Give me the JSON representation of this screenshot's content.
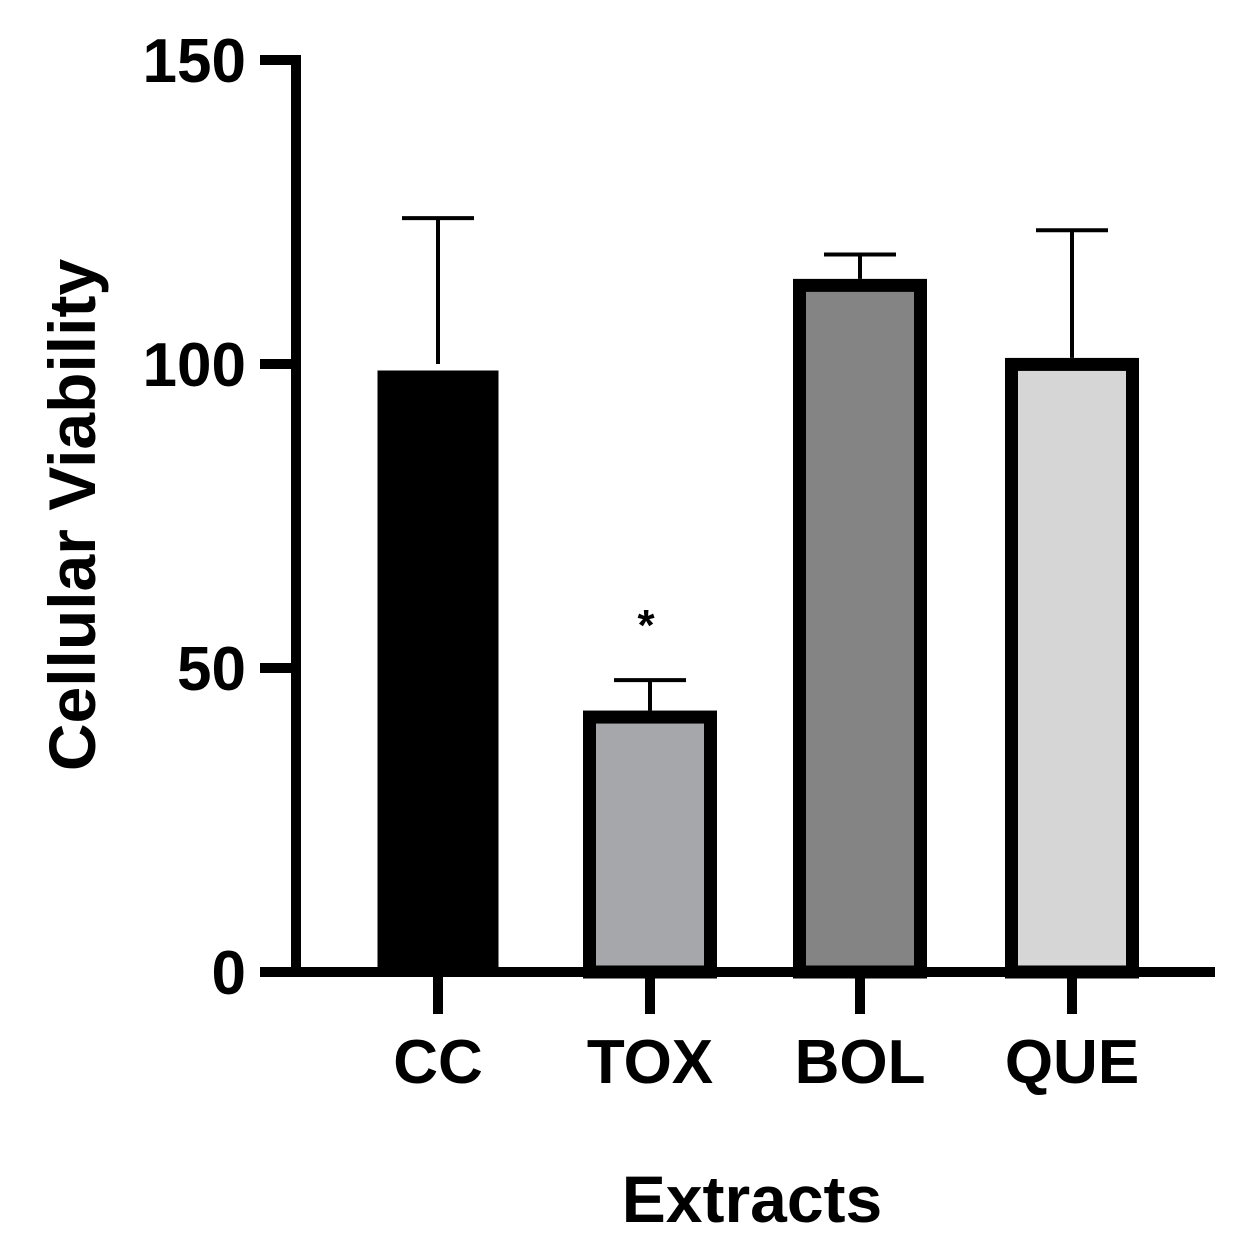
{
  "chart_data": {
    "type": "bar",
    "title": "",
    "xlabel": "Extracts",
    "ylabel": "Cellular Viability",
    "ylim": [
      0,
      150
    ],
    "yticks": [
      0,
      50,
      100,
      150
    ],
    "grid": false,
    "categories": [
      "CC",
      "TOX",
      "BOL",
      "QUE"
    ],
    "values": [
      100,
      43,
      114,
      101
    ],
    "errors": [
      24,
      5,
      4,
      21
    ],
    "colors": [
      "#000000",
      "#a6a7ab",
      "#848484",
      "#d6d6d6"
    ],
    "annotations": [
      {
        "category": "TOX",
        "text": "*"
      }
    ]
  }
}
